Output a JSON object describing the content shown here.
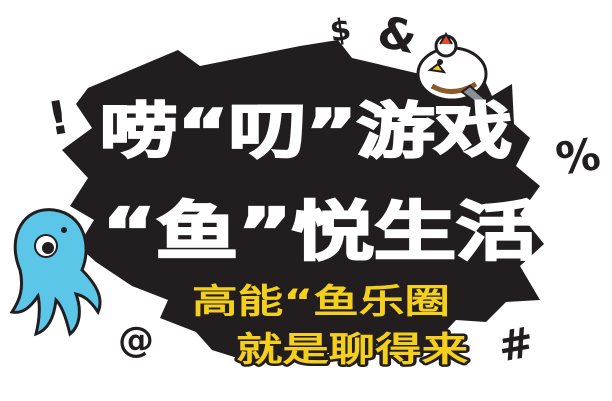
{
  "headline": {
    "line1": "唠“叨”游戏",
    "line2": "“鱼”悦生活"
  },
  "tagline": {
    "line1": "高能“鱼乐圈",
    "line2": "就是聊得来"
  },
  "symbols": {
    "dollar": "$",
    "ampersand": "&",
    "exclamation": "!",
    "percent": "%",
    "at": "@",
    "hash": "#"
  },
  "colors": {
    "panel": "#221e1f",
    "headline_text": "#ffffff",
    "tagline_text": "#f4cf1c",
    "octopus": "#5bc6e8",
    "background": "#ffffff"
  }
}
